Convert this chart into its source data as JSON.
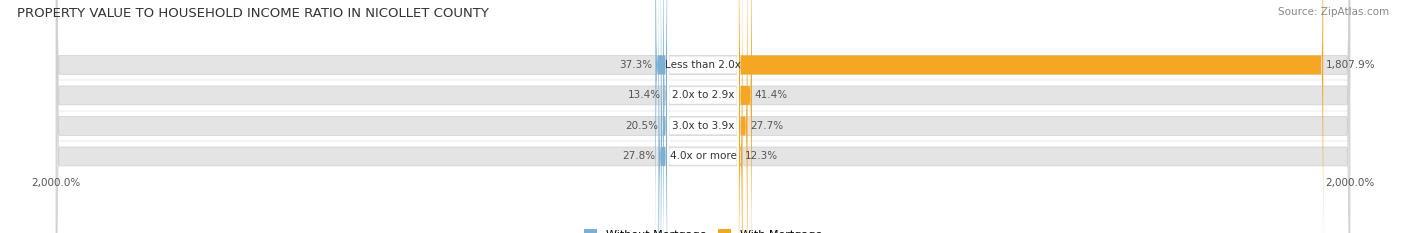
{
  "title": "PROPERTY VALUE TO HOUSEHOLD INCOME RATIO IN NICOLLET COUNTY",
  "source": "Source: ZipAtlas.com",
  "categories": [
    "Less than 2.0x",
    "2.0x to 2.9x",
    "3.0x to 3.9x",
    "4.0x or more"
  ],
  "without_mortgage": [
    37.3,
    13.4,
    20.5,
    27.8
  ],
  "with_mortgage": [
    1807.9,
    41.4,
    27.7,
    12.3
  ],
  "axis_max": 2000.0,
  "color_without": "#7bafd4",
  "color_with": "#f5a623",
  "color_with_light": "#f5c88a",
  "bar_bg_color": "#e4e4e4",
  "bar_bg_outline": "#d0d0d0",
  "center_label_bg": "#ffffff",
  "bar_height": 0.62,
  "title_fontsize": 9.5,
  "source_fontsize": 7.5,
  "label_fontsize": 7.5,
  "value_fontsize": 7.5,
  "tick_fontsize": 7.5,
  "legend_fontsize": 8,
  "background_color": "#ffffff",
  "text_color": "#333333",
  "value_color": "#555555"
}
